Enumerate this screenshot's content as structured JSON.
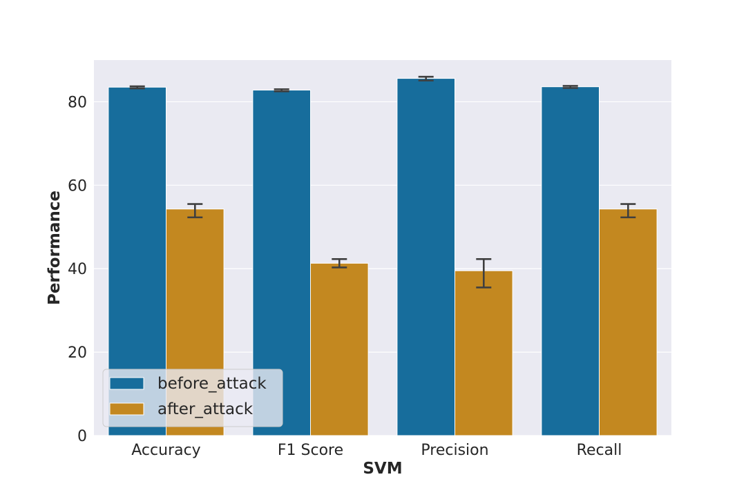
{
  "chart_data": {
    "type": "bar",
    "categories": [
      "Accuracy",
      "F1 Score",
      "Precision",
      "Recall"
    ],
    "series": [
      {
        "name": "before_attack",
        "color": "#176d9c",
        "values": [
          83.5,
          82.8,
          85.6,
          83.6
        ],
        "err_low": [
          83.2,
          82.5,
          85.1,
          83.3
        ],
        "err_high": [
          83.7,
          83.0,
          86.0,
          83.8
        ]
      },
      {
        "name": "after_attack",
        "color": "#c38820",
        "values": [
          54.3,
          41.3,
          39.5,
          54.3
        ],
        "err_low": [
          52.3,
          40.3,
          35.5,
          52.3
        ],
        "err_high": [
          55.5,
          42.3,
          42.3,
          55.5
        ]
      }
    ],
    "xlabel": "SVM",
    "ylabel": "Performance",
    "ylim": [
      0,
      90
    ],
    "yticks": [
      "0",
      "20",
      "40",
      "60",
      "80"
    ],
    "grid": true,
    "legend_position": "lower-left",
    "plot_background": "#eaeaf2"
  }
}
